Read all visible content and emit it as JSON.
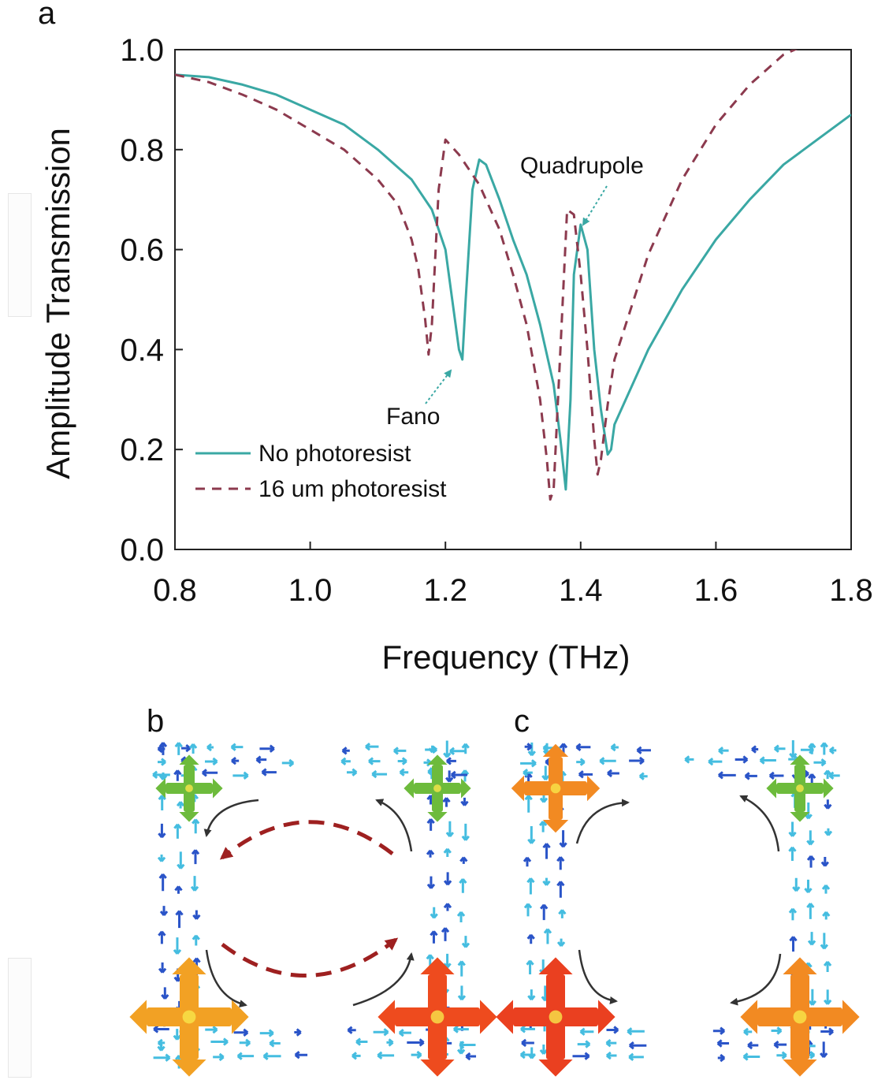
{
  "panel_labels": {
    "a": "a",
    "b": "b",
    "c": "c"
  },
  "chart_data": {
    "type": "line",
    "title": "",
    "xlabel": "Frequency (THz)",
    "ylabel": "Amplitude Transmission",
    "xlim": [
      0.8,
      1.8
    ],
    "ylim": [
      0.0,
      1.0
    ],
    "xticks": [
      "0.8",
      "1.0",
      "1.2",
      "1.4",
      "1.6",
      "1.8"
    ],
    "yticks": [
      "0.0",
      "0.2",
      "0.4",
      "0.6",
      "0.8",
      "1.0"
    ],
    "grid": false,
    "legend_position": "lower-left",
    "annotations": [
      {
        "text": "Fano",
        "points_to": [
          1.22,
          0.38
        ]
      },
      {
        "text": "Quadrupole",
        "points_to": [
          1.405,
          0.66
        ]
      }
    ],
    "series": [
      {
        "name": "No photoresist",
        "color": "#3aa8a4",
        "style": "solid",
        "x": [
          0.8,
          0.85,
          0.9,
          0.95,
          1.0,
          1.05,
          1.1,
          1.15,
          1.18,
          1.2,
          1.21,
          1.22,
          1.225,
          1.23,
          1.24,
          1.25,
          1.26,
          1.28,
          1.3,
          1.32,
          1.34,
          1.36,
          1.37,
          1.378,
          1.385,
          1.39,
          1.4,
          1.41,
          1.415,
          1.42,
          1.43,
          1.44,
          1.445,
          1.45,
          1.5,
          1.55,
          1.6,
          1.65,
          1.7,
          1.75,
          1.8
        ],
        "y": [
          0.95,
          0.945,
          0.93,
          0.91,
          0.88,
          0.85,
          0.8,
          0.74,
          0.68,
          0.6,
          0.5,
          0.4,
          0.38,
          0.5,
          0.72,
          0.78,
          0.77,
          0.7,
          0.62,
          0.55,
          0.45,
          0.33,
          0.22,
          0.12,
          0.3,
          0.55,
          0.65,
          0.6,
          0.5,
          0.4,
          0.28,
          0.19,
          0.2,
          0.25,
          0.4,
          0.52,
          0.62,
          0.7,
          0.77,
          0.82,
          0.87
        ]
      },
      {
        "name": "16 um photoresist",
        "color": "#8c3a4e",
        "style": "dashed",
        "x": [
          0.8,
          0.85,
          0.9,
          0.95,
          1.0,
          1.05,
          1.1,
          1.13,
          1.15,
          1.16,
          1.17,
          1.175,
          1.18,
          1.19,
          1.2,
          1.22,
          1.25,
          1.28,
          1.3,
          1.32,
          1.34,
          1.35,
          1.355,
          1.36,
          1.37,
          1.38,
          1.39,
          1.4,
          1.41,
          1.42,
          1.425,
          1.43,
          1.44,
          1.45,
          1.5,
          1.55,
          1.6,
          1.65,
          1.7,
          1.75
        ],
        "y": [
          0.95,
          0.935,
          0.91,
          0.88,
          0.84,
          0.8,
          0.74,
          0.69,
          0.62,
          0.56,
          0.46,
          0.39,
          0.45,
          0.72,
          0.82,
          0.79,
          0.73,
          0.64,
          0.55,
          0.45,
          0.3,
          0.18,
          0.1,
          0.12,
          0.4,
          0.68,
          0.67,
          0.55,
          0.4,
          0.22,
          0.15,
          0.18,
          0.29,
          0.38,
          0.59,
          0.74,
          0.85,
          0.93,
          0.99,
          1.02
        ]
      }
    ]
  },
  "panels": [
    {
      "id": "b",
      "markers": [
        {
          "name": "marker-top-left",
          "color": "#6dbb3c"
        },
        {
          "name": "marker-top-right",
          "color": "#6dbb3c"
        },
        {
          "name": "marker-bottom-left",
          "color": "#f2a124"
        },
        {
          "name": "marker-bottom-right",
          "color": "#ee4b1e"
        }
      ],
      "red_dashed_arrows": 2,
      "black_arrows": 4
    },
    {
      "id": "c",
      "markers": [
        {
          "name": "marker-top-left",
          "color": "#f28a22"
        },
        {
          "name": "marker-top-right",
          "color": "#6dbb3c"
        },
        {
          "name": "marker-bottom-left",
          "color": "#ea4020"
        },
        {
          "name": "marker-bottom-right",
          "color": "#f28a22"
        }
      ],
      "red_dashed_arrows": 0,
      "black_arrows": 4
    }
  ],
  "colors": {
    "field_light": "#45bde0",
    "field_dark": "#2a54c8",
    "black_arrow": "#333333",
    "red_arrow": "#9e2020"
  }
}
